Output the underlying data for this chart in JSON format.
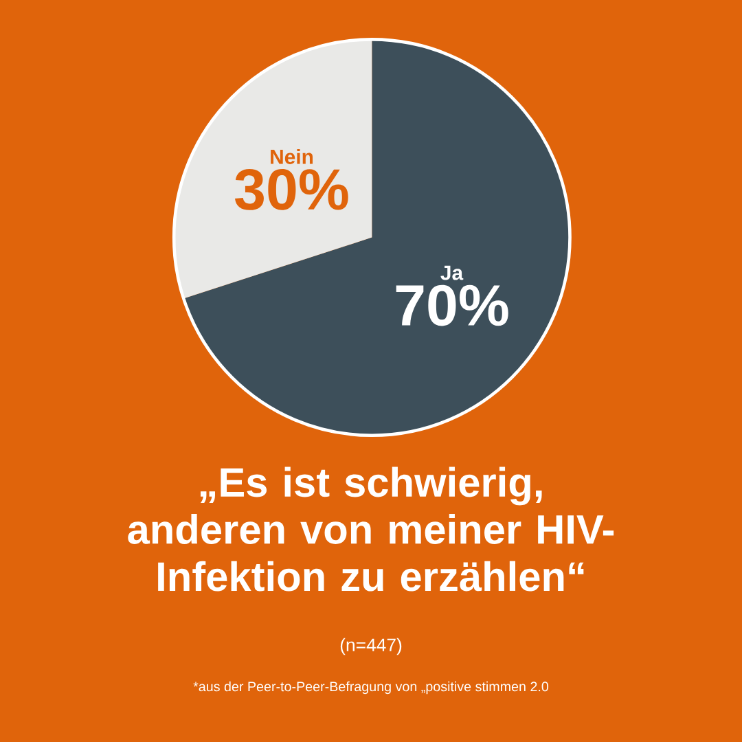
{
  "chart_data": {
    "type": "pie",
    "title": "„Es ist schwierig, anderen von meiner HIV-Infektion zu erzählen“",
    "subtitle": "(n=447)",
    "categories": [
      "Ja",
      "Nein"
    ],
    "values": [
      70,
      30
    ],
    "colors": [
      "#3d4f5a",
      "#e9e9e7"
    ],
    "value_labels": [
      "70%",
      "30%"
    ],
    "annotations": [
      "*aus der Peer-to-Peer-Befragung von „positive stimmen 2.0"
    ]
  }
}
